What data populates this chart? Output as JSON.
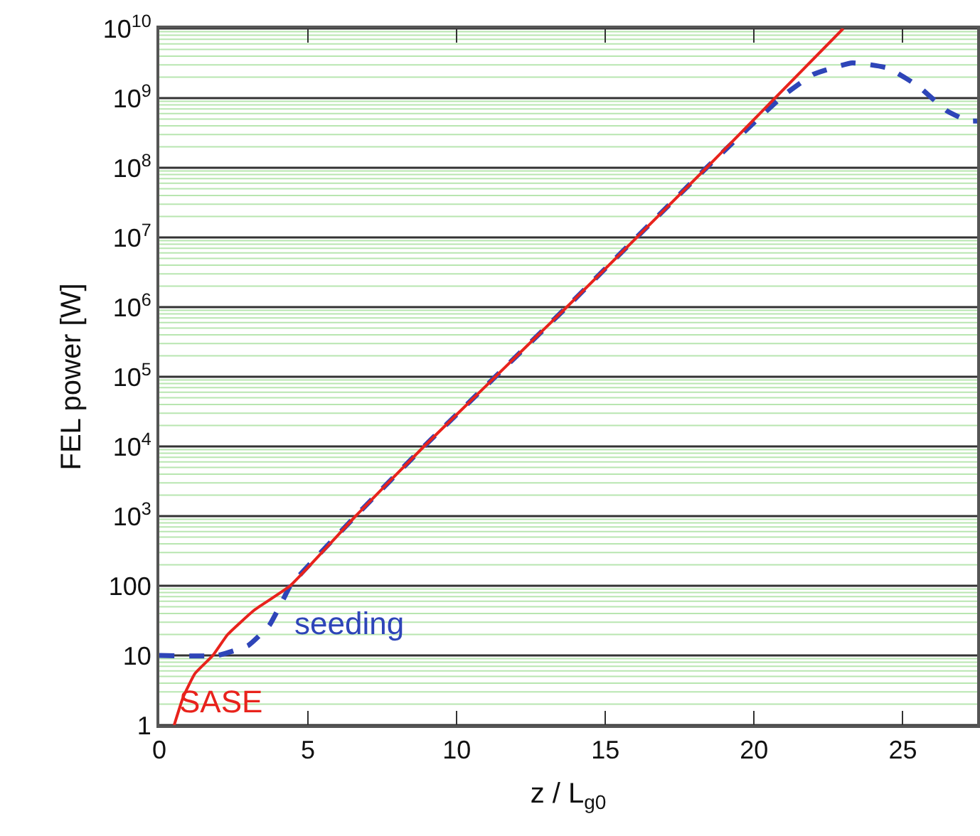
{
  "chart_data": {
    "type": "line",
    "xlabel": "z / L$_{g0}$",
    "ylabel": "FEL power [W]",
    "log": "y",
    "grid": "y",
    "legend": false,
    "xlim": [
      0,
      27.5
    ],
    "xticks": [
      0,
      5,
      10,
      15,
      20,
      25
    ],
    "ylim": [
      1,
      10000000000
    ],
    "yticks": [
      1,
      {
        "value": 2,
        "label": null
      },
      {
        "value": 3,
        "label": null
      },
      {
        "value": 4,
        "label": null
      },
      {
        "value": 5,
        "label": null
      },
      {
        "value": 6,
        "label": null
      },
      {
        "value": 7,
        "label": null
      },
      {
        "value": 8,
        "label": null
      },
      {
        "value": 9,
        "label": null
      },
      10,
      {
        "value": 20,
        "label": null
      },
      {
        "value": 30,
        "label": null
      },
      {
        "value": 40,
        "label": null
      },
      {
        "value": 50,
        "label": null
      },
      {
        "value": 60,
        "label": null
      },
      {
        "value": 70,
        "label": null
      },
      {
        "value": 80,
        "label": null
      },
      {
        "value": 90,
        "label": null
      },
      100,
      {
        "value": 200,
        "label": null
      },
      {
        "value": 300,
        "label": null
      },
      {
        "value": 400,
        "label": null
      },
      {
        "value": 500,
        "label": null
      },
      {
        "value": 600,
        "label": null
      },
      {
        "value": 700,
        "label": null
      },
      {
        "value": 800,
        "label": null
      },
      {
        "value": 900,
        "label": null
      },
      {
        "value": 1000,
        "label": "10$^{3}$"
      },
      {
        "value": 2000,
        "label": null
      },
      {
        "value": 3000,
        "label": null
      },
      {
        "value": 4000,
        "label": null
      },
      {
        "value": 5000,
        "label": null
      },
      {
        "value": 6000,
        "label": null
      },
      {
        "value": 7000,
        "label": null
      },
      {
        "value": 8000,
        "label": null
      },
      {
        "value": 9000,
        "label": null
      },
      {
        "value": 10000,
        "label": "10$^{4}$"
      },
      {
        "value": 20000,
        "label": null
      },
      {
        "value": 30000,
        "label": null
      },
      {
        "value": 40000,
        "label": null
      },
      {
        "value": 50000,
        "label": null
      },
      {
        "value": 60000,
        "label": null
      },
      {
        "value": 70000,
        "label": null
      },
      {
        "value": 80000,
        "label": null
      },
      {
        "value": 90000,
        "label": null
      },
      {
        "value": 100000,
        "label": "10$^{5}$"
      },
      {
        "value": 200000,
        "label": null
      },
      {
        "value": 300000,
        "label": null
      },
      {
        "value": 400000,
        "label": null
      },
      {
        "value": 500000,
        "label": null
      },
      {
        "value": 600000,
        "label": null
      },
      {
        "value": 700000,
        "label": null
      },
      {
        "value": 800000,
        "label": null
      },
      {
        "value": 900000,
        "label": null
      },
      {
        "value": 1000000,
        "label": "10$^{6}$"
      },
      {
        "value": 2000000,
        "label": null
      },
      {
        "value": 3000000,
        "label": null
      },
      {
        "value": 4000000,
        "label": null
      },
      {
        "value": 5000000,
        "label": null
      },
      {
        "value": 6000000,
        "label": null
      },
      {
        "value": 7000000,
        "label": null
      },
      {
        "value": 8000000,
        "label": null
      },
      {
        "value": 9000000,
        "label": null
      },
      {
        "value": 10000000,
        "label": "10$^{7}$"
      },
      {
        "value": 20000000,
        "label": null
      },
      {
        "value": 30000000,
        "label": null
      },
      {
        "value": 40000000,
        "label": null
      },
      {
        "value": 50000000,
        "label": null
      },
      {
        "value": 60000000,
        "label": null
      },
      {
        "value": 70000000,
        "label": null
      },
      {
        "value": 80000000,
        "label": null
      },
      {
        "value": 90000000,
        "label": null
      },
      {
        "value": 100000000,
        "label": "10$^{8}$"
      },
      {
        "value": 200000000,
        "label": null
      },
      {
        "value": 300000000,
        "label": null
      },
      {
        "value": 400000000,
        "label": null
      },
      {
        "value": 500000000,
        "label": null
      },
      {
        "value": 600000000,
        "label": null
      },
      {
        "value": 700000000,
        "label": null
      },
      {
        "value": 800000000,
        "label": null
      },
      {
        "value": 900000000,
        "label": null
      },
      {
        "value": 1000000000,
        "label": "10$^{9}$"
      },
      {
        "value": 2000000000,
        "label": null
      },
      {
        "value": 3000000000,
        "label": null
      },
      {
        "value": 4000000000,
        "label": null
      },
      {
        "value": 5000000000,
        "label": null
      },
      {
        "value": 6000000000,
        "label": null
      },
      {
        "value": 7000000000,
        "label": null
      },
      {
        "value": 8000000000,
        "label": null
      },
      {
        "value": 9000000000,
        "label": null
      },
      {
        "value": 10000000000,
        "label": "10$^{10}$"
      }
    ],
    "series": [
      {
        "name": "seeding",
        "color": "#2e45b8",
        "line_style": "dashed",
        "x": [
          0,
          1.95,
          3,
          3.7,
          4.2,
          4.4,
          6.6,
          8.9,
          13.7,
          18.4,
          21,
          22,
          23.3,
          24.5,
          25.5,
          26.5,
          27.2,
          27.5
        ],
        "values": [
          10,
          10,
          14,
          27,
          68,
          100,
          1000,
          10000,
          1000000,
          100000000,
          1100000000,
          2200000000,
          3200000000,
          2700000000,
          1500000000,
          650000000,
          470000000,
          470000000
        ]
      },
      {
        "name": "SASE",
        "color": "#e8231c",
        "line_style": "solid",
        "x": [
          0.5,
          0.8,
          1.2,
          1.8,
          2.3,
          3.2,
          4.4,
          6.6,
          8.9,
          13.7,
          18.4,
          23
        ],
        "values": [
          1,
          2.5,
          5.5,
          10,
          20,
          45,
          100,
          1000,
          10000,
          1000000,
          100000000,
          10000000000
        ]
      }
    ]
  }
}
